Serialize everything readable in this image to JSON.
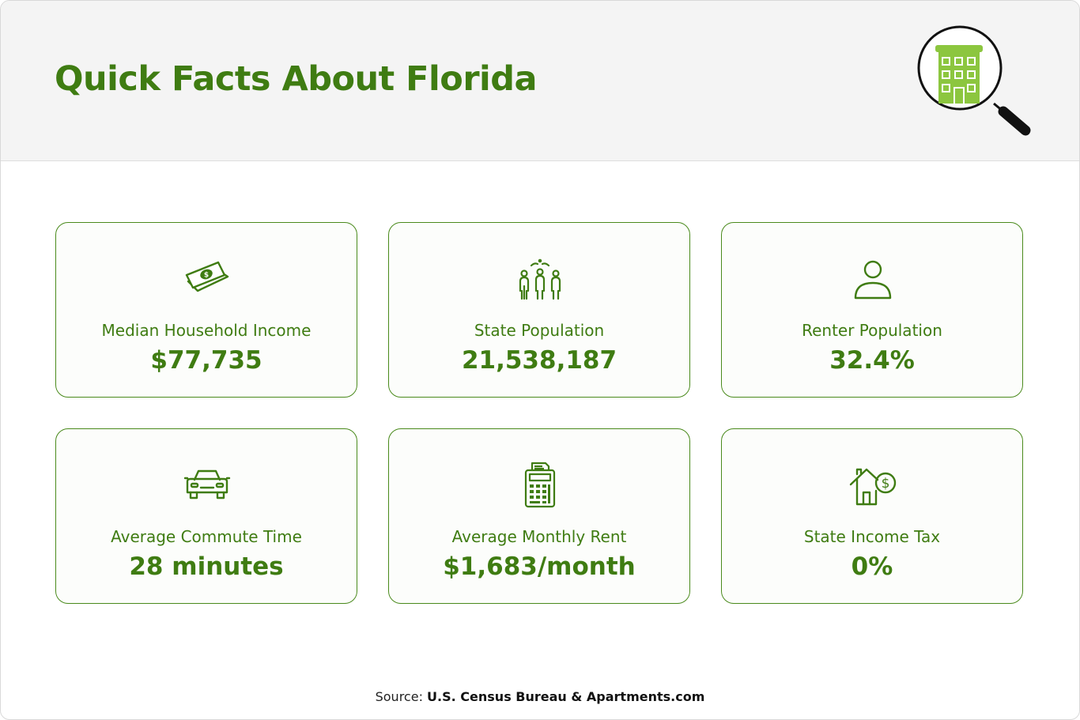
{
  "header": {
    "title": "Quick Facts About Florida",
    "logo_icon": "building-magnifier-icon"
  },
  "facts": [
    {
      "label": "Median Household Income",
      "value": "$77,735",
      "icon": "cash-icon"
    },
    {
      "label": "State Population",
      "value": "21,538,187",
      "icon": "people-group-icon"
    },
    {
      "label": "Renter Population",
      "value": "32.4%",
      "icon": "person-icon"
    },
    {
      "label": "Average Commute Time",
      "value": "28 minutes",
      "icon": "car-icon"
    },
    {
      "label": "Average Monthly Rent",
      "value": "$1,683/month",
      "icon": "calculator-icon"
    },
    {
      "label": "State Income Tax",
      "value": "0%",
      "icon": "house-dollar-icon"
    }
  ],
  "footer": {
    "source_prefix": "Source:",
    "source_text": "U.S. Census Bureau & Apartments.com"
  },
  "colors": {
    "accent": "#3f7c12",
    "icon_green": "#8cc63f",
    "header_bg": "#f4f4f4"
  }
}
